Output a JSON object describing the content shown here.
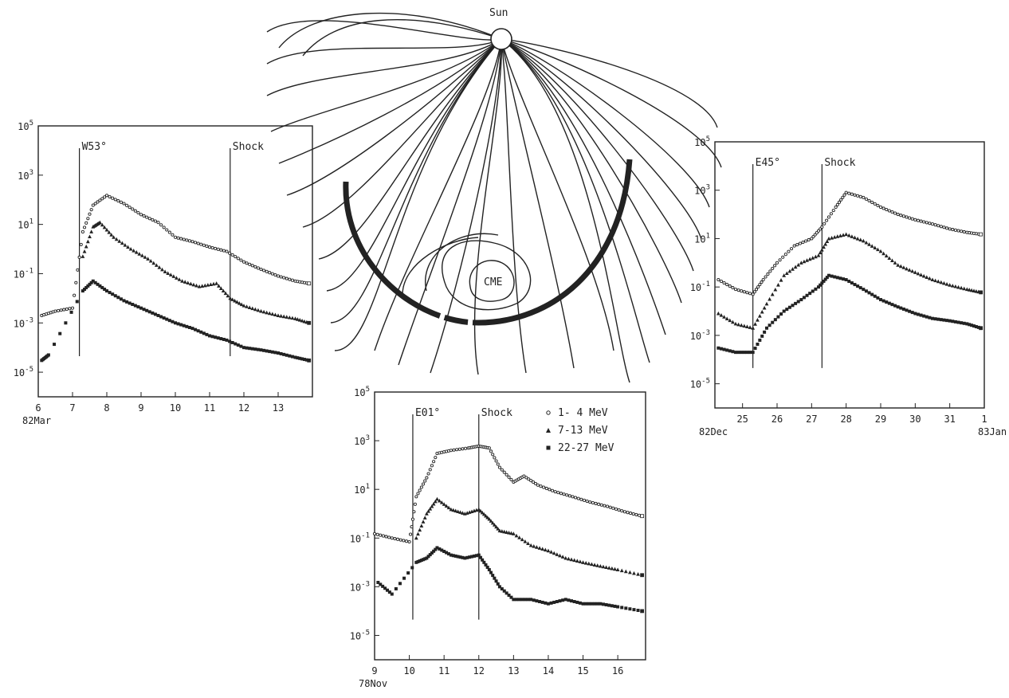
{
  "diagram": {
    "sun_label": "Sun",
    "cme_label": "CME"
  },
  "chart_data": [
    {
      "type": "scatter",
      "panel": "left",
      "title": "",
      "xlabel": "82Mar",
      "ylabel": "",
      "yscale": "log",
      "ylim": [
        1e-06,
        100000
      ],
      "xlim": [
        6,
        14
      ],
      "x_ticks": [
        "6",
        "7",
        "8",
        "9",
        "10",
        "11",
        "12",
        "13"
      ],
      "y_ticks": [
        "10^5",
        "10^3",
        "10^1",
        "10^-1",
        "10^-3",
        "10^-5"
      ],
      "event_marker": {
        "label": "W53°",
        "x": 7.2
      },
      "shock_marker": {
        "label": "Shock",
        "x": 11.6
      },
      "series": [
        {
          "values": [
            [
              6.1,
              0.002
            ],
            [
              6.5,
              0.003
            ],
            [
              7.0,
              0.004
            ],
            [
              7.3,
              5
            ],
            [
              7.6,
              60
            ],
            [
              8.0,
              150
            ],
            [
              8.5,
              70
            ],
            [
              9.0,
              25
            ],
            [
              9.5,
              12
            ],
            [
              10.0,
              3
            ],
            [
              10.5,
              2
            ],
            [
              11.0,
              1.2
            ],
            [
              11.5,
              0.8
            ],
            [
              12.0,
              0.3
            ],
            [
              12.5,
              0.15
            ],
            [
              13.0,
              0.08
            ],
            [
              13.5,
              0.05
            ],
            [
              13.9,
              0.04
            ]
          ]
        },
        {
          "values": [
            [
              7.3,
              0.5
            ],
            [
              7.6,
              8
            ],
            [
              7.8,
              12
            ],
            [
              8.2,
              3
            ],
            [
              8.7,
              1
            ],
            [
              9.2,
              0.4
            ],
            [
              9.7,
              0.12
            ],
            [
              10.2,
              0.05
            ],
            [
              10.7,
              0.03
            ],
            [
              11.2,
              0.04
            ],
            [
              11.6,
              0.01
            ],
            [
              12.0,
              0.005
            ],
            [
              12.5,
              0.003
            ],
            [
              13.0,
              0.002
            ],
            [
              13.5,
              0.0015
            ],
            [
              13.9,
              0.001
            ]
          ]
        },
        {
          "values": [
            [
              6.1,
              3e-05
            ],
            [
              6.3,
              5e-05
            ],
            [
              7.3,
              0.02
            ],
            [
              7.6,
              0.05
            ],
            [
              8.0,
              0.02
            ],
            [
              8.5,
              0.008
            ],
            [
              9.0,
              0.004
            ],
            [
              9.5,
              0.002
            ],
            [
              10.0,
              0.001
            ],
            [
              10.5,
              0.0006
            ],
            [
              11.0,
              0.0003
            ],
            [
              11.5,
              0.0002
            ],
            [
              12.0,
              0.0001
            ],
            [
              12.5,
              8e-05
            ],
            [
              13.0,
              6e-05
            ],
            [
              13.5,
              4e-05
            ],
            [
              13.9,
              3e-05
            ]
          ]
        }
      ]
    },
    {
      "type": "scatter",
      "panel": "center",
      "title": "",
      "xlabel": "78Nov",
      "ylabel": "",
      "yscale": "log",
      "ylim": [
        1e-06,
        100000
      ],
      "xlim": [
        9,
        16.8
      ],
      "x_ticks": [
        "9",
        "10",
        "11",
        "12",
        "13",
        "14",
        "15",
        "16"
      ],
      "y_ticks": [
        "10^5",
        "10^3",
        "10^1",
        "10^-1",
        "10^-3",
        "10^-5"
      ],
      "event_marker": {
        "label": "E01°",
        "x": 10.1
      },
      "shock_marker": {
        "label": "Shock",
        "x": 12.0
      },
      "legend": {
        "placement": "top-right",
        "entries": [
          "1- 4 MeV",
          "7-13 MeV",
          "22-27 MeV"
        ]
      },
      "series": [
        {
          "name": "1- 4 MeV",
          "values": [
            [
              9.0,
              0.15
            ],
            [
              9.5,
              0.1
            ],
            [
              10.0,
              0.07
            ],
            [
              10.2,
              5
            ],
            [
              10.5,
              30
            ],
            [
              10.8,
              300
            ],
            [
              11.2,
              400
            ],
            [
              11.7,
              500
            ],
            [
              12.0,
              600
            ],
            [
              12.3,
              500
            ],
            [
              12.6,
              80
            ],
            [
              13.0,
              20
            ],
            [
              13.3,
              35
            ],
            [
              13.7,
              15
            ],
            [
              14.2,
              8
            ],
            [
              14.7,
              5
            ],
            [
              15.2,
              3
            ],
            [
              15.7,
              2
            ],
            [
              16.2,
              1.2
            ],
            [
              16.7,
              0.8
            ]
          ]
        },
        {
          "name": "7-13 MeV",
          "values": [
            [
              10.2,
              0.1
            ],
            [
              10.5,
              1
            ],
            [
              10.8,
              4
            ],
            [
              11.2,
              1.5
            ],
            [
              11.6,
              1
            ],
            [
              12.0,
              1.5
            ],
            [
              12.3,
              0.6
            ],
            [
              12.6,
              0.2
            ],
            [
              13.0,
              0.15
            ],
            [
              13.5,
              0.05
            ],
            [
              14.0,
              0.03
            ],
            [
              14.5,
              0.015
            ],
            [
              15.0,
              0.01
            ],
            [
              15.5,
              0.007
            ],
            [
              16.0,
              0.005
            ],
            [
              16.7,
              0.003
            ]
          ]
        },
        {
          "name": "22-27 MeV",
          "values": [
            [
              9.1,
              0.0015
            ],
            [
              9.5,
              0.0005
            ],
            [
              10.2,
              0.01
            ],
            [
              10.5,
              0.015
            ],
            [
              10.8,
              0.04
            ],
            [
              11.2,
              0.02
            ],
            [
              11.6,
              0.015
            ],
            [
              12.0,
              0.02
            ],
            [
              12.3,
              0.005
            ],
            [
              12.6,
              0.001
            ],
            [
              13.0,
              0.0003
            ],
            [
              13.5,
              0.0003
            ],
            [
              14.0,
              0.0002
            ],
            [
              14.5,
              0.0003
            ],
            [
              15.0,
              0.0002
            ],
            [
              15.5,
              0.0002
            ],
            [
              16.0,
              0.00015
            ],
            [
              16.7,
              0.0001
            ]
          ]
        }
      ]
    },
    {
      "type": "scatter",
      "panel": "right",
      "title": "",
      "xlabel": "82Dec",
      "x_end_label": "83Jan",
      "ylabel": "",
      "yscale": "log",
      "ylim": [
        1e-06,
        100000
      ],
      "xlim": [
        24.2,
        32
      ],
      "x_ticks": [
        "25",
        "26",
        "27",
        "28",
        "29",
        "30",
        "31",
        "1"
      ],
      "y_ticks": [
        "10^5",
        "10^3",
        "10^1",
        "10^-1",
        "10^-3",
        "10^-5"
      ],
      "event_marker": {
        "label": "E45°",
        "x": 25.3
      },
      "shock_marker": {
        "label": "Shock",
        "x": 27.3
      },
      "series": [
        {
          "values": [
            [
              24.3,
              0.2
            ],
            [
              24.8,
              0.08
            ],
            [
              25.3,
              0.05
            ],
            [
              25.6,
              0.2
            ],
            [
              26.0,
              1
            ],
            [
              26.5,
              5
            ],
            [
              27.0,
              10
            ],
            [
              27.3,
              30
            ],
            [
              27.7,
              200
            ],
            [
              28.0,
              800
            ],
            [
              28.5,
              500
            ],
            [
              29.0,
              200
            ],
            [
              29.5,
              100
            ],
            [
              30.0,
              60
            ],
            [
              30.5,
              40
            ],
            [
              31.0,
              25
            ],
            [
              31.5,
              18
            ],
            [
              31.9,
              15
            ]
          ]
        },
        {
          "values": [
            [
              24.3,
              0.008
            ],
            [
              24.8,
              0.003
            ],
            [
              25.3,
              0.002
            ],
            [
              25.7,
              0.02
            ],
            [
              26.2,
              0.3
            ],
            [
              26.7,
              1
            ],
            [
              27.2,
              2
            ],
            [
              27.5,
              10
            ],
            [
              28.0,
              15
            ],
            [
              28.5,
              8
            ],
            [
              29.0,
              3
            ],
            [
              29.5,
              0.8
            ],
            [
              30.0,
              0.4
            ],
            [
              30.5,
              0.2
            ],
            [
              31.0,
              0.12
            ],
            [
              31.5,
              0.08
            ],
            [
              31.9,
              0.06
            ]
          ]
        },
        {
          "values": [
            [
              24.3,
              0.0003
            ],
            [
              24.8,
              0.0002
            ],
            [
              25.3,
              0.0002
            ],
            [
              25.7,
              0.002
            ],
            [
              26.2,
              0.01
            ],
            [
              26.7,
              0.03
            ],
            [
              27.2,
              0.1
            ],
            [
              27.5,
              0.3
            ],
            [
              28.0,
              0.2
            ],
            [
              28.5,
              0.08
            ],
            [
              29.0,
              0.03
            ],
            [
              29.5,
              0.015
            ],
            [
              30.0,
              0.008
            ],
            [
              30.5,
              0.005
            ],
            [
              31.0,
              0.004
            ],
            [
              31.5,
              0.003
            ],
            [
              31.9,
              0.002
            ]
          ]
        }
      ]
    }
  ]
}
